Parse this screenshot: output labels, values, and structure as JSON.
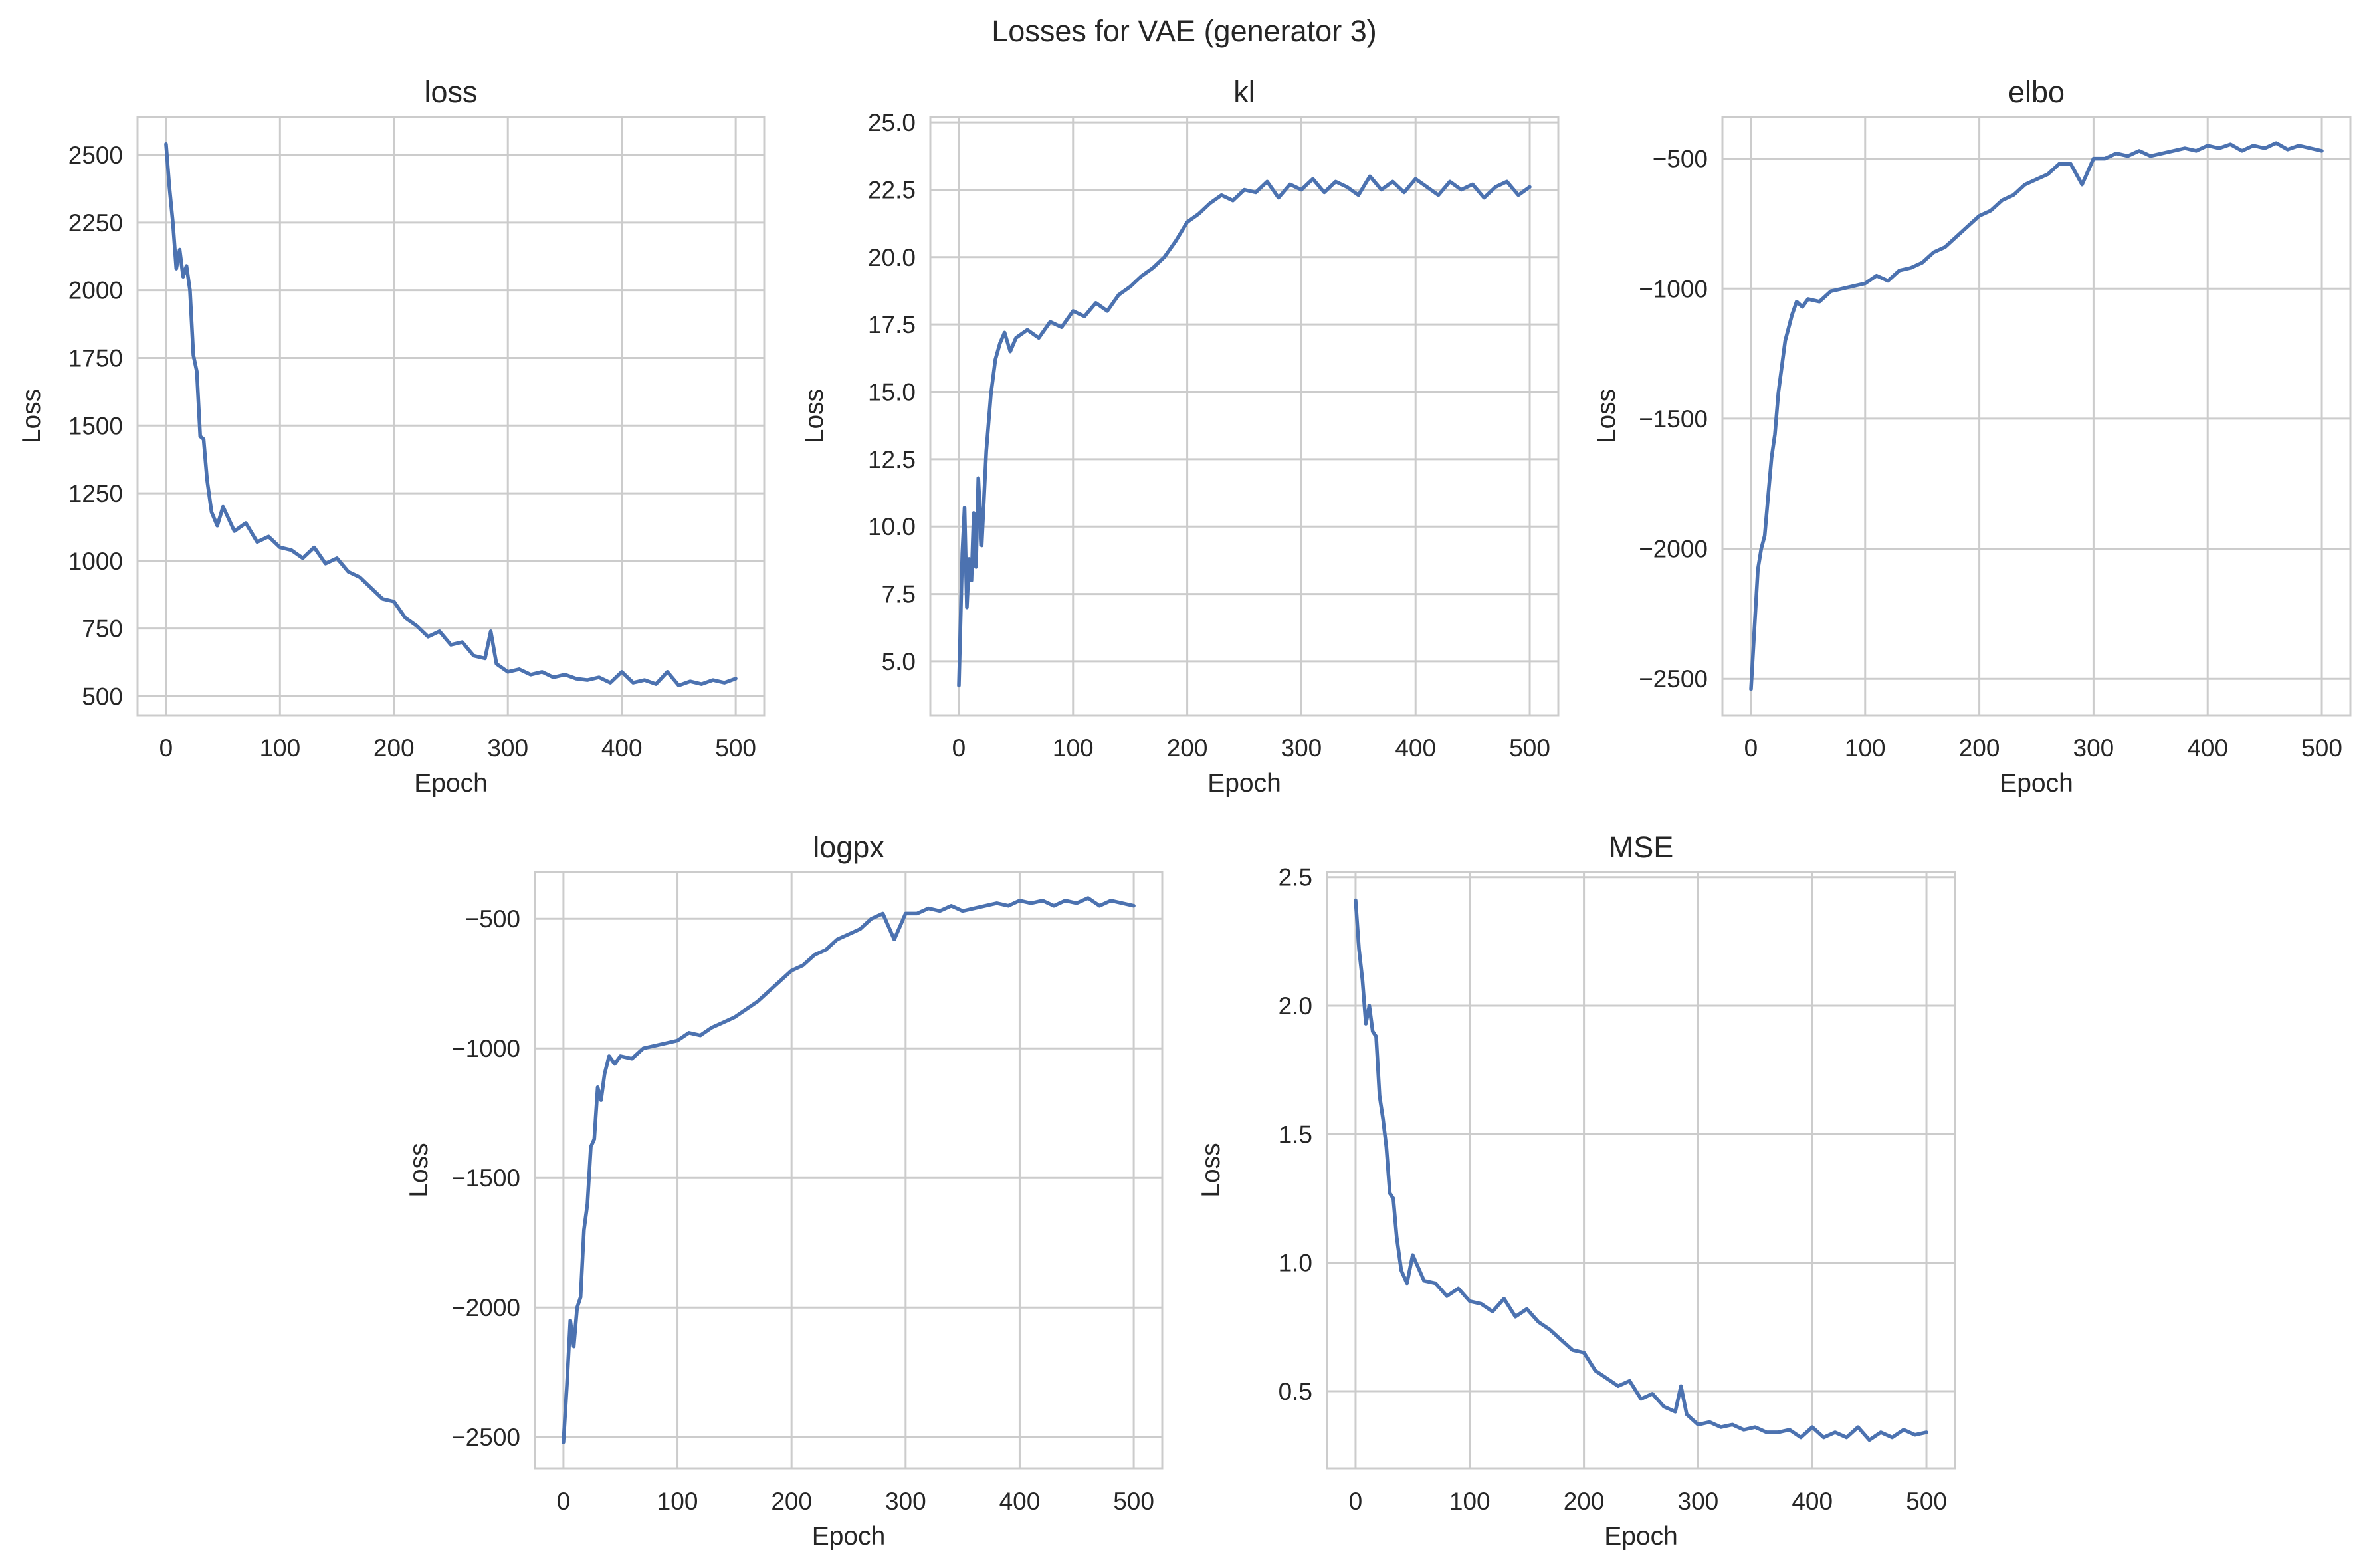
{
  "figure_title": "Losses for VAE (generator 3)",
  "style": {
    "line_color": "#4c72b0",
    "grid_color": "#cccccc",
    "text_color": "#262626",
    "background": "#ffffff"
  },
  "chart_data": [
    {
      "type": "line",
      "title": "loss",
      "xlabel": "Epoch",
      "ylabel": "Loss",
      "xlim": [
        -25,
        525
      ],
      "ylim": [
        430,
        2640
      ],
      "xticks": [
        0,
        100,
        200,
        300,
        400,
        500
      ],
      "yticks": [
        500,
        750,
        1000,
        1250,
        1500,
        1750,
        2000,
        2250,
        2500
      ],
      "ytick_labels": [
        "500",
        "750",
        "1000",
        "1250",
        "1500",
        "1750",
        "2000",
        "2250",
        "2500"
      ],
      "grid": true,
      "series": [
        {
          "x": [
            0,
            3,
            6,
            9,
            12,
            15,
            18,
            21,
            24,
            27,
            30,
            33,
            36,
            40,
            45,
            50,
            60,
            70,
            80,
            90,
            100,
            110,
            120,
            130,
            140,
            150,
            160,
            170,
            180,
            190,
            200,
            210,
            220,
            230,
            240,
            250,
            260,
            270,
            280,
            285,
            290,
            300,
            310,
            320,
            330,
            340,
            350,
            360,
            370,
            380,
            390,
            400,
            410,
            420,
            430,
            440,
            450,
            460,
            470,
            480,
            490,
            500
          ],
          "y": [
            2540,
            2380,
            2250,
            2080,
            2150,
            2050,
            2090,
            2000,
            1760,
            1700,
            1460,
            1450,
            1300,
            1180,
            1130,
            1200,
            1110,
            1140,
            1070,
            1090,
            1050,
            1040,
            1010,
            1050,
            990,
            1010,
            960,
            940,
            900,
            860,
            850,
            790,
            760,
            720,
            740,
            690,
            700,
            650,
            640,
            740,
            620,
            590,
            600,
            580,
            590,
            570,
            580,
            565,
            560,
            570,
            550,
            590,
            550,
            560,
            545,
            590,
            540,
            555,
            545,
            560,
            550,
            565
          ]
        }
      ]
    },
    {
      "type": "line",
      "title": "kl",
      "xlabel": "Epoch",
      "ylabel": "Loss",
      "xlim": [
        -25,
        525
      ],
      "ylim": [
        3.0,
        25.2
      ],
      "xticks": [
        0,
        100,
        200,
        300,
        400,
        500
      ],
      "yticks": [
        5.0,
        7.5,
        10.0,
        12.5,
        15.0,
        17.5,
        20.0,
        22.5,
        25.0
      ],
      "ytick_labels": [
        "5.0",
        "7.5",
        "10.0",
        "12.5",
        "15.0",
        "17.5",
        "20.0",
        "22.5",
        "25.0"
      ],
      "grid": true,
      "series": [
        {
          "x": [
            0,
            3,
            5,
            7,
            9,
            11,
            13,
            15,
            17,
            20,
            24,
            28,
            32,
            36,
            40,
            45,
            50,
            60,
            70,
            80,
            90,
            100,
            110,
            120,
            130,
            140,
            150,
            160,
            170,
            180,
            190,
            200,
            210,
            220,
            230,
            240,
            250,
            260,
            270,
            280,
            290,
            300,
            310,
            320,
            330,
            340,
            350,
            360,
            370,
            380,
            390,
            400,
            410,
            420,
            430,
            440,
            450,
            460,
            470,
            480,
            490,
            500
          ],
          "y": [
            4.1,
            9.0,
            10.7,
            7.0,
            8.8,
            8.0,
            10.5,
            8.5,
            11.8,
            9.3,
            12.8,
            14.9,
            16.2,
            16.8,
            17.2,
            16.5,
            17.0,
            17.3,
            17.0,
            17.6,
            17.4,
            18.0,
            17.8,
            18.3,
            18.0,
            18.6,
            18.9,
            19.3,
            19.6,
            20.0,
            20.6,
            21.3,
            21.6,
            22.0,
            22.3,
            22.1,
            22.5,
            22.4,
            22.8,
            22.2,
            22.7,
            22.5,
            22.9,
            22.4,
            22.8,
            22.6,
            22.3,
            23.0,
            22.5,
            22.8,
            22.4,
            22.9,
            22.6,
            22.3,
            22.8,
            22.5,
            22.7,
            22.2,
            22.6,
            22.8,
            22.3,
            22.6
          ]
        }
      ]
    },
    {
      "type": "line",
      "title": "elbo",
      "xlabel": "Epoch",
      "ylabel": "Loss",
      "xlim": [
        -25,
        525
      ],
      "ylim": [
        -2640,
        -340
      ],
      "xticks": [
        0,
        100,
        200,
        300,
        400,
        500
      ],
      "yticks": [
        -2500,
        -2000,
        -1500,
        -1000,
        -500
      ],
      "ytick_labels": [
        "−2500",
        "−2000",
        "−1500",
        "−1000",
        "−500"
      ],
      "grid": true,
      "series": [
        {
          "x": [
            0,
            3,
            6,
            9,
            12,
            15,
            18,
            21,
            24,
            27,
            30,
            33,
            36,
            40,
            45,
            50,
            60,
            70,
            80,
            90,
            100,
            110,
            120,
            130,
            140,
            150,
            160,
            170,
            180,
            190,
            200,
            210,
            220,
            230,
            240,
            250,
            260,
            270,
            280,
            290,
            300,
            310,
            320,
            330,
            340,
            350,
            360,
            370,
            380,
            390,
            400,
            410,
            420,
            430,
            440,
            450,
            460,
            470,
            480,
            490,
            500
          ],
          "y": [
            -2540,
            -2310,
            -2080,
            -2000,
            -1950,
            -1800,
            -1650,
            -1560,
            -1400,
            -1300,
            -1200,
            -1150,
            -1100,
            -1050,
            -1070,
            -1040,
            -1050,
            -1010,
            -1000,
            -990,
            -980,
            -950,
            -970,
            -930,
            -920,
            -900,
            -860,
            -840,
            -800,
            -760,
            -720,
            -700,
            -660,
            -640,
            -600,
            -580,
            -560,
            -520,
            -520,
            -600,
            -500,
            -500,
            -480,
            -490,
            -470,
            -490,
            -480,
            -470,
            -460,
            -470,
            -450,
            -460,
            -445,
            -470,
            -450,
            -460,
            -440,
            -465,
            -450,
            -460,
            -470
          ]
        }
      ]
    },
    {
      "type": "line",
      "title": "logpx",
      "xlabel": "Epoch",
      "ylabel": "Loss",
      "xlim": [
        -25,
        525
      ],
      "ylim": [
        -2620,
        -320
      ],
      "xticks": [
        0,
        100,
        200,
        300,
        400,
        500
      ],
      "yticks": [
        -2500,
        -2000,
        -1500,
        -1000,
        -500
      ],
      "ytick_labels": [
        "−2500",
        "−2000",
        "−1500",
        "−1000",
        "−500"
      ],
      "grid": true,
      "series": [
        {
          "x": [
            0,
            3,
            6,
            9,
            12,
            15,
            18,
            21,
            24,
            27,
            30,
            33,
            36,
            40,
            45,
            50,
            60,
            70,
            80,
            90,
            100,
            110,
            120,
            130,
            140,
            150,
            160,
            170,
            180,
            190,
            200,
            210,
            220,
            230,
            240,
            250,
            260,
            270,
            280,
            290,
            300,
            310,
            320,
            330,
            340,
            350,
            360,
            370,
            380,
            390,
            400,
            410,
            420,
            430,
            440,
            450,
            460,
            470,
            480,
            490,
            500
          ],
          "y": [
            -2520,
            -2300,
            -2050,
            -2150,
            -2000,
            -1960,
            -1700,
            -1600,
            -1380,
            -1350,
            -1150,
            -1200,
            -1100,
            -1030,
            -1060,
            -1030,
            -1040,
            -1000,
            -990,
            -980,
            -970,
            -940,
            -950,
            -920,
            -900,
            -880,
            -850,
            -820,
            -780,
            -740,
            -700,
            -680,
            -640,
            -620,
            -580,
            -560,
            -540,
            -500,
            -480,
            -580,
            -480,
            -480,
            -460,
            -470,
            -450,
            -470,
            -460,
            -450,
            -440,
            -450,
            -430,
            -440,
            -430,
            -450,
            -430,
            -440,
            -420,
            -450,
            -430,
            -440,
            -450
          ]
        }
      ]
    },
    {
      "type": "line",
      "title": "MSE",
      "xlabel": "Epoch",
      "ylabel": "Loss",
      "xlim": [
        -25,
        525
      ],
      "ylim": [
        0.2,
        2.52
      ],
      "xticks": [
        0,
        100,
        200,
        300,
        400,
        500
      ],
      "yticks": [
        0.5,
        1.0,
        1.5,
        2.0,
        2.5
      ],
      "ytick_labels": [
        "0.5",
        "1.0",
        "1.5",
        "2.0",
        "2.5"
      ],
      "grid": true,
      "series": [
        {
          "x": [
            0,
            3,
            6,
            9,
            12,
            15,
            18,
            21,
            24,
            27,
            30,
            33,
            36,
            40,
            45,
            50,
            60,
            70,
            80,
            90,
            100,
            110,
            120,
            130,
            140,
            150,
            160,
            170,
            180,
            190,
            200,
            210,
            220,
            230,
            240,
            250,
            260,
            270,
            280,
            285,
            290,
            300,
            310,
            320,
            330,
            340,
            350,
            360,
            370,
            380,
            390,
            400,
            410,
            420,
            430,
            440,
            450,
            460,
            470,
            480,
            490,
            500
          ],
          "y": [
            2.41,
            2.22,
            2.1,
            1.93,
            2.0,
            1.9,
            1.88,
            1.65,
            1.56,
            1.45,
            1.27,
            1.25,
            1.1,
            0.97,
            0.92,
            1.03,
            0.93,
            0.92,
            0.87,
            0.9,
            0.85,
            0.84,
            0.81,
            0.86,
            0.79,
            0.82,
            0.77,
            0.74,
            0.7,
            0.66,
            0.65,
            0.58,
            0.55,
            0.52,
            0.54,
            0.47,
            0.49,
            0.44,
            0.42,
            0.52,
            0.41,
            0.37,
            0.38,
            0.36,
            0.37,
            0.35,
            0.36,
            0.34,
            0.34,
            0.35,
            0.32,
            0.36,
            0.32,
            0.34,
            0.32,
            0.36,
            0.31,
            0.34,
            0.32,
            0.35,
            0.33,
            0.34
          ]
        }
      ]
    }
  ]
}
